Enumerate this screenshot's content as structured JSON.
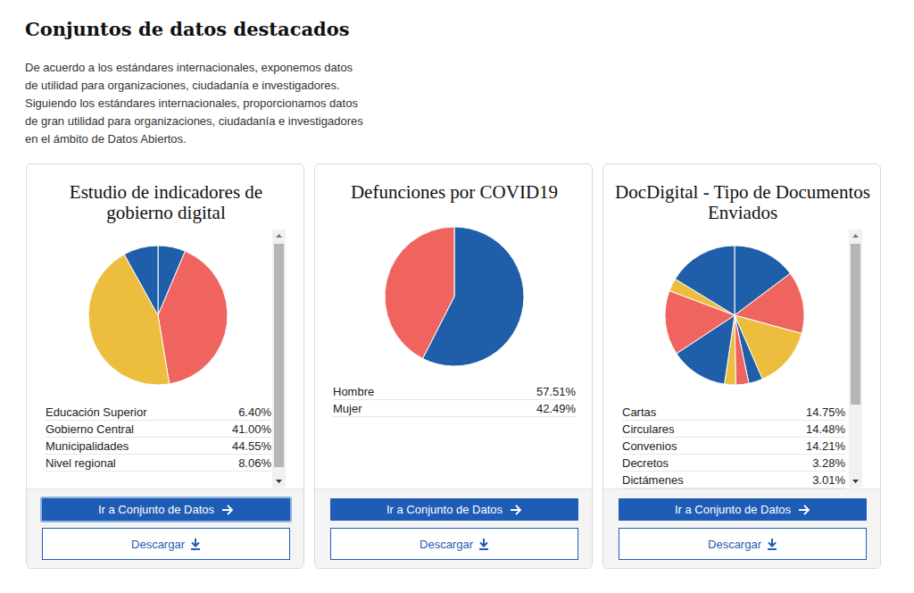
{
  "page": {
    "title": "Conjuntos de datos destacados",
    "intro": "De acuerdo a los estándares internacionales, exponemos datos de utilidad para organizaciones, ciudadanía e investigadores. Siguiendo los estándares internacionales, proporcionamos datos de gran utilidad para organizaciones, ciudadanía e investigadores en el ámbito de Datos Abiertos."
  },
  "actions": {
    "open": "Ir a Conjunto de Datos",
    "download": "Descargar"
  },
  "chart_data": [
    {
      "type": "pie",
      "title": "Estudio de indicadores de gobierno digital",
      "categories": [
        "Educación Superior",
        "Gobierno Central",
        "Municipalidades",
        "Nivel regional"
      ],
      "values": [
        6.4,
        41.0,
        44.55,
        8.06
      ],
      "value_labels": [
        "6.40%",
        "41.00%",
        "44.55%",
        "8.06%"
      ],
      "colors": [
        "#1f5ea8",
        "#f0645f",
        "#edbd3e",
        "#1f5ea8"
      ]
    },
    {
      "type": "pie",
      "title": "Defunciones por COVID19",
      "categories": [
        "Hombre",
        "Mujer"
      ],
      "values": [
        57.51,
        42.49
      ],
      "value_labels": [
        "57.51%",
        "42.49%"
      ],
      "colors": [
        "#1f5ea8",
        "#f0645f"
      ]
    },
    {
      "type": "pie",
      "title": "DocDigital - Tipo de Documentos Enviados",
      "categories": [
        "Cartas",
        "Circulares",
        "Convenios",
        "Decretos",
        "Dictámenes",
        null,
        null,
        null,
        null,
        null
      ],
      "values": [
        14.75,
        14.48,
        14.21,
        3.28,
        3.01,
        2.6,
        13.4,
        15.0,
        3.0,
        16.27
      ],
      "value_labels": [
        "14.75%",
        "14.48%",
        "14.21%",
        "3.28%",
        "3.01%",
        null,
        null,
        null,
        null,
        null
      ],
      "colors": [
        "#1f5ea8",
        "#f0645f",
        "#edbd3e",
        "#1f5ea8",
        "#f0645f",
        "#edbd3e",
        "#1f5ea8",
        "#f0645f",
        "#edbd3e",
        "#1f5ea8"
      ]
    }
  ]
}
